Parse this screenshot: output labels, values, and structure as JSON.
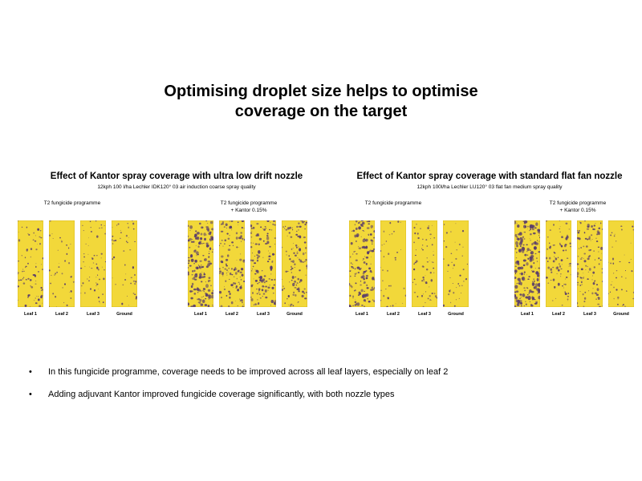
{
  "title_line1": "Optimising droplet size helps to optimise",
  "title_line2": "coverage on the target",
  "panels": [
    {
      "title": "Effect of Kantor spray coverage with ultra low drift nozzle",
      "subtitle": "12kph 100 l/ha Lechler IDK120° 03 air induction coarse spray quality",
      "group1": "T2 fungicide programme",
      "group2_line1": "T2 fungicide programme",
      "group2_line2": "+ Kantor 0.15%",
      "strip_labels": [
        "Leaf 1",
        "Leaf 2",
        "Leaf 3",
        "Ground",
        "Leaf 1",
        "Leaf 2",
        "Leaf 3",
        "Ground"
      ]
    },
    {
      "title": "Effect of Kantor spray coverage with standard flat fan nozzle",
      "subtitle": "12kph 100l/ha Lechler LU120° 03 flat fan medium spray quality",
      "group1": "T2 fungicide programme",
      "group2_line1": "T2 fungicide programme",
      "group2_line2": "+ Kantor 0.15%",
      "strip_labels": [
        "Leaf 1",
        "Leaf 2",
        "Leaf 3",
        "Ground",
        "Leaf 1",
        "Leaf 2",
        "Leaf 3",
        "Ground"
      ]
    }
  ],
  "bullet_symbol": "•",
  "bullets": [
    "In this fungicide programme, coverage needs to be improved across all leaf layers, especially on leaf 2",
    "Adding adjuvant Kantor improved fungicide coverage significantly, with both nozzle types"
  ],
  "colors": {
    "paper": "#f2d83a",
    "spray": "#5a3d6b"
  },
  "coverage": {
    "panel1": [
      0.18,
      0.06,
      0.12,
      0.08,
      0.45,
      0.32,
      0.35,
      0.28
    ],
    "panel2": [
      0.4,
      0.05,
      0.15,
      0.07,
      0.55,
      0.22,
      0.3,
      0.08
    ]
  }
}
